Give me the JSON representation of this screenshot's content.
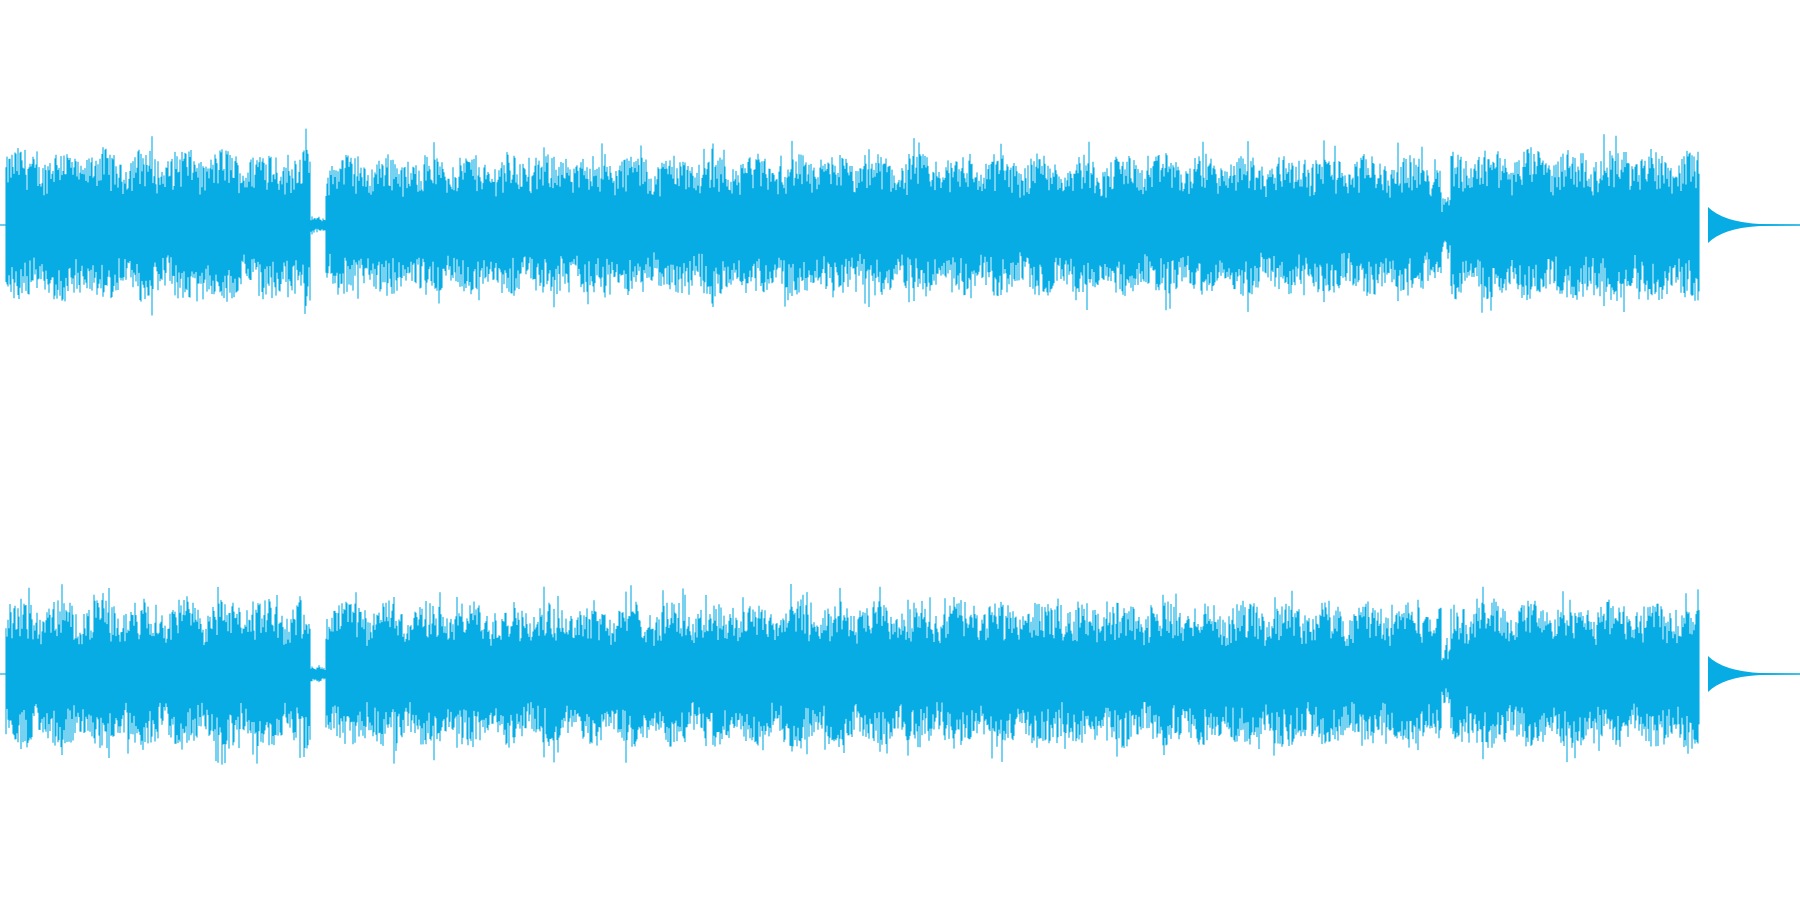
{
  "waveform": {
    "color": "#06ACE3",
    "background": "#FFFFFF",
    "channel_count": 2,
    "channels": [
      {
        "name": "",
        "segments": [
          {
            "from": 0.0,
            "to": 0.17,
            "level": 0.78
          },
          {
            "from": 0.17,
            "to": 0.178,
            "level": 0.08
          },
          {
            "from": 0.178,
            "to": 0.8,
            "level": 0.72
          },
          {
            "from": 0.8,
            "to": 0.805,
            "level": 0.3
          },
          {
            "from": 0.805,
            "to": 0.955,
            "level": 0.78
          },
          {
            "from": 0.955,
            "to": 0.97,
            "level": 0.06
          },
          {
            "from": 0.97,
            "to": 1.0,
            "level": 0.0
          }
        ]
      },
      {
        "name": "",
        "segments": [
          {
            "from": 0.0,
            "to": 0.17,
            "level": 0.76
          },
          {
            "from": 0.17,
            "to": 0.178,
            "level": 0.08
          },
          {
            "from": 0.178,
            "to": 0.8,
            "level": 0.74
          },
          {
            "from": 0.8,
            "to": 0.805,
            "level": 0.3
          },
          {
            "from": 0.805,
            "to": 0.955,
            "level": 0.76
          },
          {
            "from": 0.955,
            "to": 0.97,
            "level": 0.06
          },
          {
            "from": 0.97,
            "to": 1.0,
            "level": 0.0
          }
        ]
      }
    ]
  }
}
